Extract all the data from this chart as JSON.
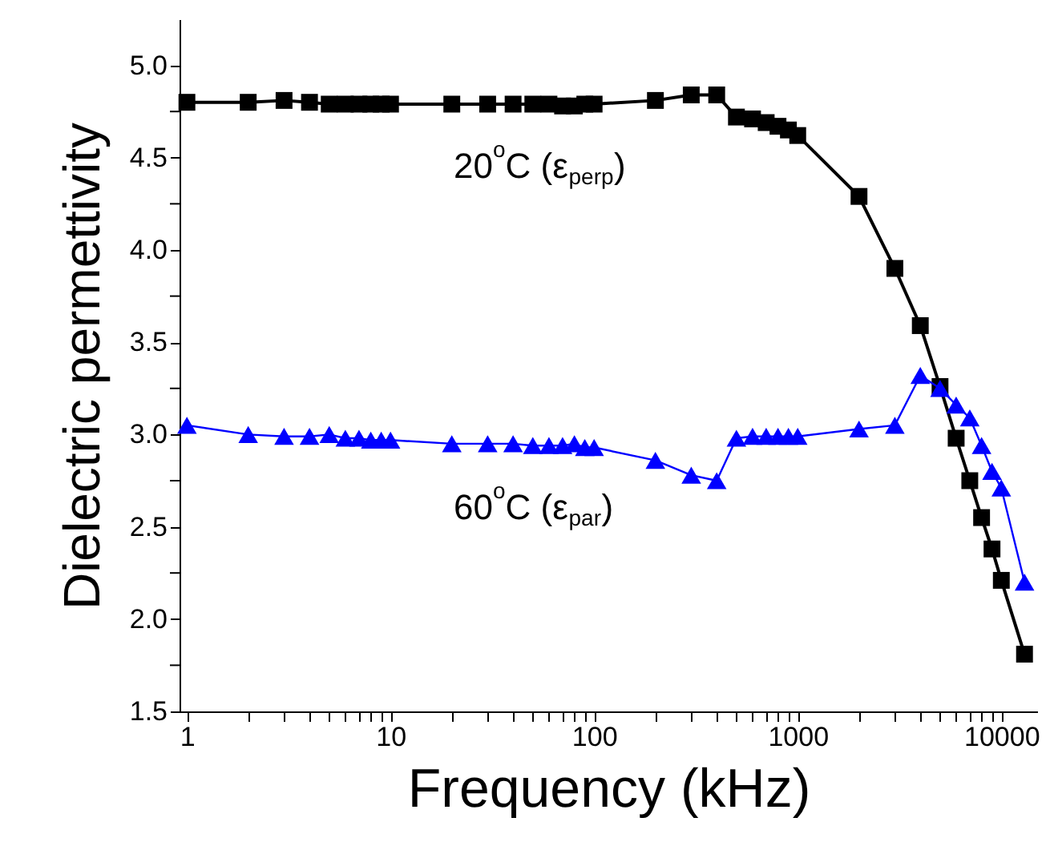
{
  "chart_data": {
    "type": "line",
    "xlabel": "Frequency (kHz)",
    "ylabel": "Dielectric permettivity",
    "log": "x",
    "grid": false,
    "line_style": "solid",
    "xlim": [
      0.92,
      15000
    ],
    "ylim": [
      1.5,
      5.25
    ],
    "xticks": [
      1,
      {
        "value": 2,
        "label": null
      },
      {
        "value": 3,
        "label": null
      },
      {
        "value": 4,
        "label": null
      },
      {
        "value": 5,
        "label": null
      },
      {
        "value": 6,
        "label": null
      },
      {
        "value": 7,
        "label": null
      },
      {
        "value": 8,
        "label": null
      },
      {
        "value": 9,
        "label": null
      },
      10,
      {
        "value": 20,
        "label": null
      },
      {
        "value": 30,
        "label": null
      },
      {
        "value": 40,
        "label": null
      },
      {
        "value": 50,
        "label": null
      },
      {
        "value": 60,
        "label": null
      },
      {
        "value": 70,
        "label": null
      },
      {
        "value": 80,
        "label": null
      },
      {
        "value": 90,
        "label": null
      },
      100,
      {
        "value": 200,
        "label": null
      },
      {
        "value": 300,
        "label": null
      },
      {
        "value": 400,
        "label": null
      },
      {
        "value": 500,
        "label": null
      },
      {
        "value": 600,
        "label": null
      },
      {
        "value": 700,
        "label": null
      },
      {
        "value": 800,
        "label": null
      },
      {
        "value": 900,
        "label": null
      },
      1000,
      {
        "value": 2000,
        "label": null
      },
      {
        "value": 3000,
        "label": null
      },
      {
        "value": 4000,
        "label": null
      },
      {
        "value": 5000,
        "label": null
      },
      {
        "value": 6000,
        "label": null
      },
      {
        "value": 7000,
        "label": null
      },
      {
        "value": 8000,
        "label": null
      },
      {
        "value": 9000,
        "label": null
      },
      10000
    ],
    "yticks": [
      {
        "value": 1.5,
        "label": "1.5"
      },
      {
        "value": 1.75,
        "label": null
      },
      {
        "value": 2.0,
        "label": "2.0"
      },
      {
        "value": 2.25,
        "label": null
      },
      {
        "value": 2.5,
        "label": "2.5"
      },
      {
        "value": 2.75,
        "label": null
      },
      {
        "value": 3.0,
        "label": "3.0"
      },
      {
        "value": 3.25,
        "label": null
      },
      {
        "value": 3.5,
        "label": "3.5"
      },
      {
        "value": 3.75,
        "label": null
      },
      {
        "value": 4.0,
        "label": "4.0"
      },
      {
        "value": 4.25,
        "label": null
      },
      {
        "value": 4.5,
        "label": "4.5"
      },
      {
        "value": 4.75,
        "label": null
      },
      {
        "value": 5.0,
        "label": "5.0"
      }
    ],
    "x": [
      1,
      2,
      3,
      4,
      5,
      6,
      7,
      8,
      9,
      10,
      20,
      30,
      40,
      50,
      60,
      70,
      80,
      90,
      100,
      200,
      300,
      400,
      500,
      600,
      700,
      800,
      900,
      1000,
      2000,
      3000,
      4000,
      5000,
      6000,
      7000,
      8000,
      9000,
      10000,
      13000
    ],
    "series": [
      {
        "color": "#000000",
        "marker": "square",
        "values": [
          4.8,
          4.8,
          4.81,
          4.8,
          4.79,
          4.79,
          4.79,
          4.79,
          4.79,
          4.79,
          4.79,
          4.79,
          4.79,
          4.79,
          4.79,
          4.78,
          4.78,
          4.79,
          4.79,
          4.81,
          4.84,
          4.84,
          4.72,
          4.71,
          4.69,
          4.67,
          4.65,
          4.62,
          4.29,
          3.9,
          3.59,
          3.26,
          2.98,
          2.75,
          2.55,
          2.38,
          2.21,
          1.81
        ]
      },
      {
        "color": "#0000ff",
        "marker": "triangle",
        "values": [
          3.05,
          3.0,
          2.99,
          2.99,
          3.0,
          2.98,
          2.98,
          2.97,
          2.97,
          2.97,
          2.95,
          2.95,
          2.95,
          2.94,
          2.94,
          2.94,
          2.95,
          2.93,
          2.93,
          2.86,
          2.78,
          2.75,
          2.98,
          2.99,
          2.99,
          2.99,
          2.99,
          2.99,
          3.03,
          3.05,
          3.32,
          3.25,
          3.16,
          3.09,
          2.94,
          2.8,
          2.71,
          2.2
        ]
      }
    ],
    "annotations": [
      "20$^{o}$C (ε$_{perp}$)",
      "60$^{o}$C (ε$_{par}$)"
    ]
  }
}
